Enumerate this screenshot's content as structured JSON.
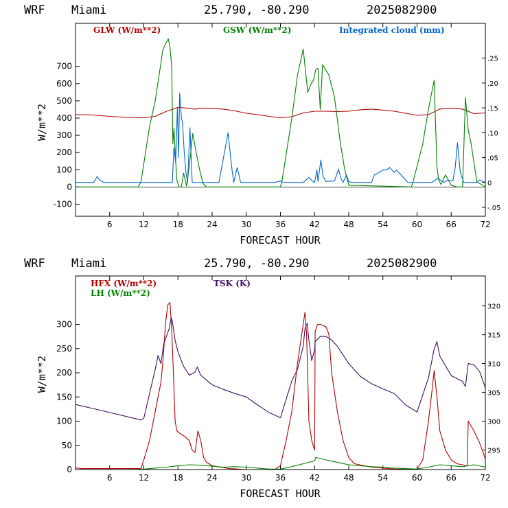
{
  "chart_data": [
    {
      "type": "line",
      "header": {
        "model": "WRF",
        "station": "Miami",
        "coords": "25.790, -80.290",
        "date": "2025082900"
      },
      "xlabel": "FORECAST HOUR",
      "ylabel": "W/m**2",
      "xlim": [
        0,
        72
      ],
      "ylim": [
        -170,
        950
      ],
      "x_ticks": [
        6,
        12,
        18,
        24,
        30,
        36,
        42,
        48,
        54,
        60,
        66,
        72
      ],
      "y_ticks": [
        -100,
        0,
        100,
        200,
        300,
        400,
        500,
        600,
        700
      ],
      "y2_ticks": [
        ".25",
        ".20",
        ".15",
        ".10",
        ".05",
        "0",
        "-.05"
      ],
      "y2_lim": [
        -0.068,
        0.32
      ],
      "series": [
        {
          "name": "GLW (W/m**2)",
          "color": "#b00000",
          "axis": "left",
          "x": [
            0,
            3,
            6,
            9,
            12,
            14,
            15,
            16,
            17,
            18,
            19,
            20,
            21,
            22,
            23,
            24,
            26,
            28,
            30,
            32,
            34,
            36,
            38,
            40,
            42,
            44,
            46,
            48,
            50,
            52,
            54,
            56,
            58,
            60,
            62,
            64,
            66,
            68,
            70,
            72
          ],
          "y": [
            420,
            418,
            410,
            404,
            402,
            410,
            425,
            440,
            450,
            462,
            460,
            455,
            452,
            456,
            458,
            455,
            452,
            442,
            428,
            420,
            410,
            402,
            408,
            430,
            440,
            440,
            438,
            440,
            448,
            452,
            446,
            440,
            428,
            416,
            420,
            452,
            457,
            452,
            426,
            430
          ]
        },
        {
          "name": "GSW (W/m**2)",
          "color": "#008000",
          "axis": "left",
          "x": [
            0,
            11,
            11.5,
            13,
            14,
            15,
            15.3,
            15.8,
            16.3,
            16.6,
            16.9,
            17.1,
            17.3,
            17.6,
            17.8,
            18.2,
            18.6,
            19,
            19.5,
            20,
            20.6,
            21.2,
            21.8,
            22.4,
            23,
            36,
            36.3,
            38,
            39,
            40,
            40.8,
            41.4,
            41.8,
            42.2,
            42.6,
            43,
            43.4,
            44.5,
            45.5,
            46.5,
            47.3,
            48,
            59,
            59.3,
            61,
            62,
            63,
            63.5,
            63.8,
            64.2,
            65,
            66,
            67,
            68,
            68.5,
            69,
            69.5,
            70.5,
            71.5,
            72
          ],
          "y": [
            0,
            0,
            30,
            350,
            500,
            720,
            790,
            830,
            860,
            810,
            700,
            250,
            340,
            150,
            40,
            0,
            0,
            80,
            5,
            120,
            310,
            200,
            100,
            20,
            0,
            0,
            40,
            400,
            650,
            800,
            550,
            600,
            620,
            680,
            690,
            450,
            710,
            650,
            520,
            260,
            100,
            10,
            0,
            30,
            250,
            450,
            620,
            120,
            40,
            15,
            70,
            10,
            0,
            0,
            520,
            330,
            250,
            30,
            10,
            0
          ]
        },
        {
          "name": "Integrated cloud (mm)",
          "color": "#0066cc",
          "axis": "right",
          "x": [
            0,
            3.2,
            3.8,
            4.3,
            5,
            17.0,
            17.3,
            17.6,
            17.9,
            18.1,
            18.3,
            18.6,
            18.8,
            19.1,
            19.4,
            19.7,
            20.1,
            20.5,
            21.0,
            25.2,
            26.0,
            26.8,
            27.5,
            27.8,
            28.4,
            29,
            35,
            36,
            36.5,
            40,
            40.6,
            41,
            41.5,
            42,
            42.4,
            42.6,
            43.1,
            43.5,
            44,
            45.5,
            46.2,
            46.6,
            47,
            47.6,
            48,
            48.5,
            52,
            52.5,
            53.3,
            54,
            54.6,
            55.2,
            56,
            56.4,
            57.2,
            58,
            58.4,
            62.5,
            63.2,
            63.6,
            64.2,
            64.8,
            65.2,
            66.3,
            66.7,
            67.1,
            67.6,
            68.2,
            69,
            70.5,
            71,
            72
          ],
          "y": [
            0,
            0,
            0.012,
            0.004,
            0,
            0,
            0.07,
            0.04,
            0.15,
            0.05,
            0.18,
            0.13,
            0.12,
            0.06,
            0.02,
            0,
            0.11,
            0,
            0,
            0,
            0.05,
            0.1,
            0.025,
            0,
            0.03,
            0,
            0,
            0.003,
            0,
            0,
            0.006,
            0.01,
            0.004,
            0,
            0.025,
            0.002,
            0.045,
            0.012,
            0.002,
            0.003,
            0.027,
            0.009,
            0,
            0.015,
            0.002,
            0,
            0,
            0.015,
            0.02,
            0.025,
            0.025,
            0.03,
            0.02,
            0.025,
            0.015,
            0.005,
            0,
            0,
            0.004,
            0.009,
            0.004,
            0,
            0.004,
            0.003,
            0.03,
            0.08,
            0.02,
            0,
            0,
            0,
            0.005,
            0
          ]
        }
      ]
    },
    {
      "type": "line",
      "header": {
        "model": "WRF",
        "station": "Miami",
        "coords": "25.790, -80.290",
        "date": "2025082900"
      },
      "xlabel": "FORECAST HOUR",
      "ylabel": "W/m**2",
      "xlim": [
        0,
        72
      ],
      "ylim": [
        0,
        400
      ],
      "x_ticks": [
        6,
        12,
        18,
        24,
        30,
        36,
        42,
        48,
        54,
        60,
        66,
        72
      ],
      "y_ticks": [
        0,
        50,
        100,
        150,
        200,
        250,
        300
      ],
      "y2_ticks": [
        "320",
        "315",
        "310",
        "305",
        "300",
        "295"
      ],
      "y2_lim": [
        291.6,
        325.2
      ],
      "series": [
        {
          "name": "HFX (W/m**2)",
          "color": "#b00000",
          "axis": "left",
          "x": [
            0,
            0.5,
            1,
            11.5,
            12,
            13,
            14,
            15,
            15.4,
            15.8,
            16.2,
            16.6,
            16.9,
            17.2,
            17.5,
            17.8,
            18.3,
            19,
            20,
            20.5,
            21,
            21.5,
            22,
            22.5,
            23,
            24,
            27,
            30,
            33,
            35,
            36,
            37,
            38,
            39,
            40,
            40.3,
            40.6,
            41,
            41.5,
            42,
            42.1,
            42.5,
            43,
            44,
            44.5,
            45,
            46,
            47,
            48,
            49,
            52,
            56,
            60,
            61,
            62,
            62.7,
            63,
            63.5,
            64,
            65,
            66,
            67,
            68,
            68.6,
            68.8,
            69,
            70,
            71,
            72
          ],
          "y": [
            3,
            3,
            2,
            2,
            20,
            60,
            120,
            180,
            230,
            300,
            340,
            345,
            290,
            200,
            100,
            80,
            75,
            70,
            60,
            40,
            35,
            80,
            60,
            25,
            15,
            8,
            2,
            0,
            0,
            0,
            8,
            60,
            120,
            220,
            300,
            325,
            280,
            100,
            60,
            40,
            285,
            300,
            300,
            295,
            280,
            200,
            120,
            60,
            25,
            12,
            5,
            1,
            0,
            20,
            100,
            170,
            205,
            150,
            80,
            40,
            20,
            12,
            10,
            8,
            8,
            100,
            80,
            55,
            22
          ]
        },
        {
          "name": "LH (W/m**2)",
          "color": "#008000",
          "axis": "left",
          "x": [
            0,
            10,
            12,
            14,
            16,
            18,
            20,
            22,
            24,
            26,
            28,
            30,
            32,
            34,
            36,
            38,
            40,
            42,
            42.2,
            44,
            46,
            48,
            50,
            52,
            54,
            56,
            58,
            60,
            62,
            64,
            66,
            68,
            70,
            72
          ],
          "y": [
            0,
            0,
            1,
            3,
            5,
            8,
            10,
            9,
            7,
            5,
            6,
            5,
            3,
            1,
            1,
            6,
            12,
            18,
            25,
            20,
            15,
            10,
            8,
            6,
            5,
            3,
            2,
            1,
            5,
            10,
            8,
            6,
            10,
            5
          ]
        },
        {
          "name": "TSK (K)",
          "color": "#3d0f5c",
          "axis": "right",
          "x": [
            0,
            3,
            6,
            9,
            11.5,
            12,
            14,
            14.5,
            15,
            15.5,
            16,
            16.5,
            16.8,
            17,
            17.5,
            18,
            19,
            20,
            21,
            21.4,
            22,
            24,
            26,
            28,
            30,
            32,
            34,
            36,
            38,
            39,
            40,
            40.3,
            40.7,
            41,
            41.5,
            42,
            42.1,
            43,
            44,
            45,
            46,
            48,
            50,
            52,
            54,
            56,
            58,
            60,
            62,
            63,
            63.5,
            64,
            66,
            68,
            68.5,
            69,
            70,
            71,
            72
          ],
          "y": [
            302.9,
            302.2,
            301.5,
            300.8,
            300.2,
            300.5,
            309,
            311.4,
            310,
            313.4,
            314.8,
            316.2,
            318,
            317.4,
            314,
            312,
            309.5,
            308,
            308.5,
            309.4,
            308,
            306.3,
            305.5,
            304.8,
            304.2,
            302.8,
            301.5,
            300.6,
            307,
            309,
            313,
            316,
            317,
            314,
            310.5,
            312.4,
            313.8,
            314.7,
            314.7,
            314.1,
            313,
            310,
            307.8,
            306.5,
            305.6,
            304.8,
            302.8,
            301.6,
            307.5,
            312.5,
            313.8,
            311.3,
            307.9,
            306.9,
            306,
            310,
            309.8,
            308.6,
            305.8
          ]
        }
      ]
    }
  ]
}
